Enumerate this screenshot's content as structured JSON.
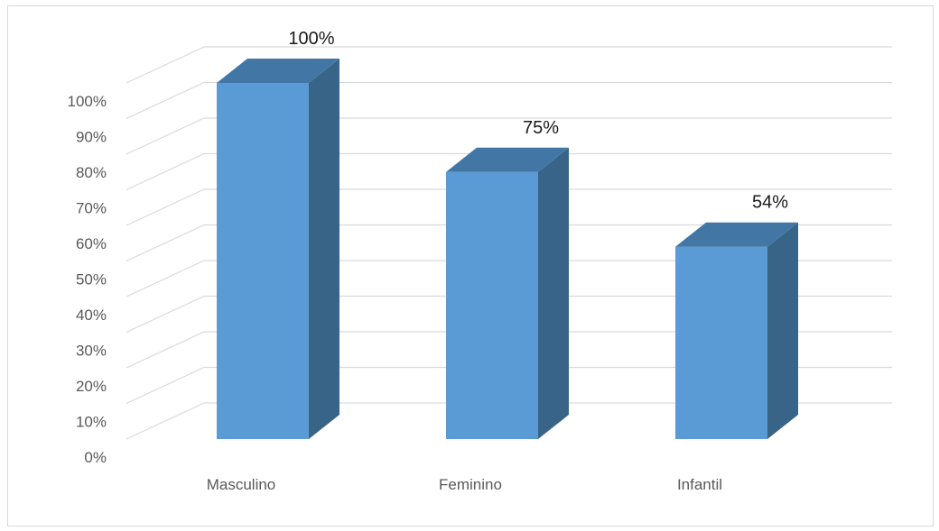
{
  "chart_data": {
    "type": "bar",
    "style": "3d-column",
    "categories": [
      "Masculino",
      "Feminino",
      "Infantil"
    ],
    "values": [
      100,
      75,
      54
    ],
    "data_labels": [
      "100%",
      "75%",
      "54%"
    ],
    "y_ticks": [
      "0%",
      "10%",
      "20%",
      "30%",
      "40%",
      "50%",
      "60%",
      "70%",
      "80%",
      "90%",
      "100%"
    ],
    "ylim": [
      0,
      100
    ],
    "grid": true,
    "legend": "none",
    "colors": {
      "bar_front": "#5b9bd5",
      "bar_side": "#386488",
      "bar_top": "#4277a5",
      "grid": "#d9d9d9",
      "axis_text": "#595959",
      "label_text": "#1a1a1a"
    }
  }
}
